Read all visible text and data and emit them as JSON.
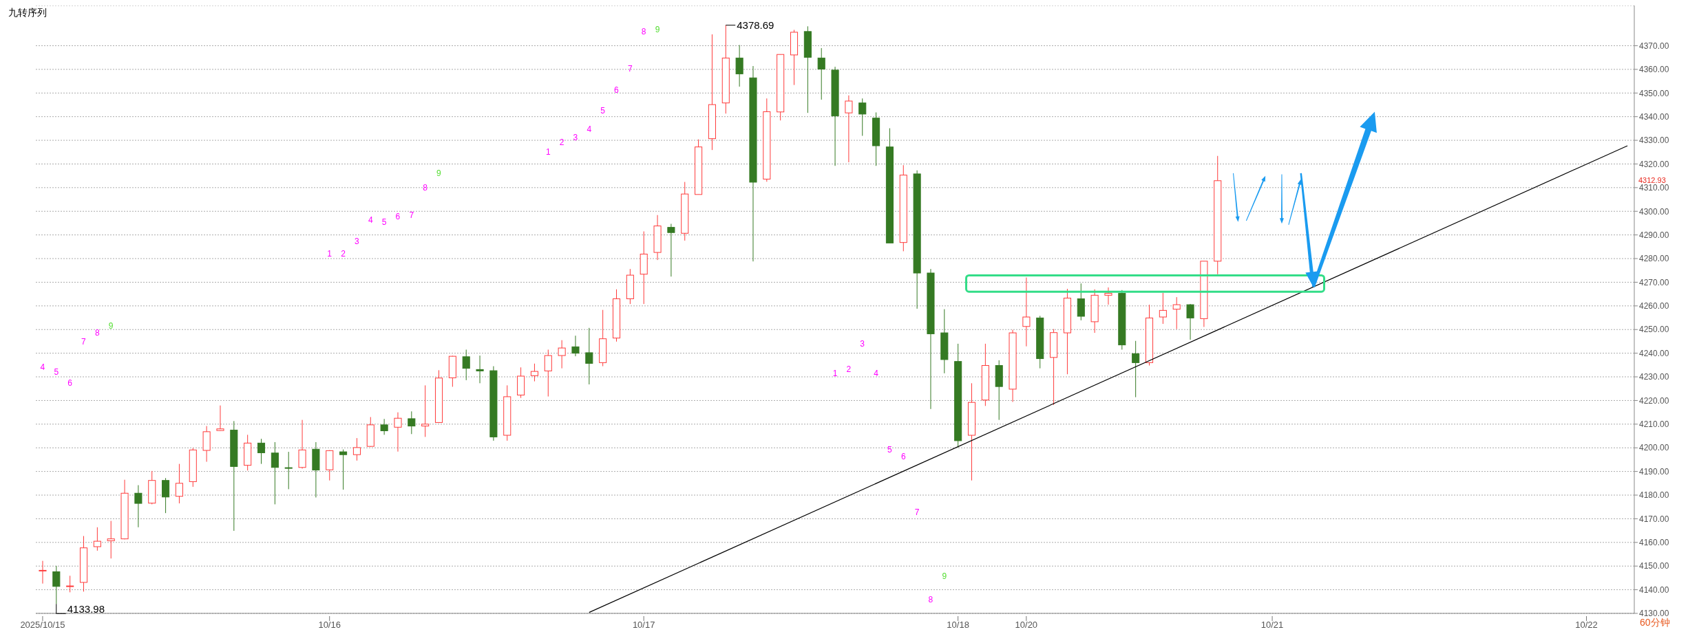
{
  "chart_data": {
    "type": "candlestick",
    "title": "九转序列",
    "categories": [
      "2025/10/15",
      null,
      null,
      null,
      null,
      null,
      null,
      null,
      null,
      null,
      null,
      null,
      null,
      null,
      null,
      null,
      null,
      null,
      null,
      null,
      null,
      "10/16",
      null,
      null,
      null,
      null,
      null,
      null,
      null,
      null,
      null,
      null,
      null,
      null,
      null,
      null,
      null,
      null,
      null,
      null,
      null,
      null,
      null,
      null,
      "10/17",
      null,
      null,
      null,
      null,
      null,
      null,
      null,
      null,
      null,
      null,
      null,
      null,
      null,
      null,
      null,
      null,
      null,
      null,
      null,
      null,
      null,
      null,
      "10/18",
      null,
      null,
      null,
      null,
      "10/20",
      null,
      null,
      null,
      null,
      null,
      null,
      null,
      null,
      null,
      null,
      null,
      null,
      null,
      null,
      null,
      null,
      null,
      "10/21",
      null,
      null,
      null,
      null,
      null,
      null,
      null,
      null,
      null,
      null,
      null,
      null,
      null,
      null,
      null,
      null,
      null,
      null,
      null,
      null,
      null,
      null,
      "10/22",
      null,
      null,
      null
    ],
    "ohlc": [
      [
        4148.0,
        4152.2,
        4142.6,
        4148.2
      ],
      [
        4147.6,
        4150.1,
        4133.98,
        4141.4
      ],
      [
        4141.4,
        4145.9,
        4138.9,
        4141.6
      ],
      [
        4143.1,
        4162.7,
        4139.2,
        4157.7
      ],
      [
        4158.2,
        4166.4,
        4156.5,
        4160.5
      ],
      [
        4160.7,
        4169.1,
        4153.2,
        4161.5
      ],
      [
        4161.5,
        4186.5,
        4161.3,
        4180.8
      ],
      [
        4180.8,
        4184.2,
        4166.4,
        4176.5
      ],
      [
        4176.6,
        4190.2,
        4176.1,
        4186.2
      ],
      [
        4186.2,
        4187.2,
        4172.4,
        4179.2
      ],
      [
        4179.5,
        4193.2,
        4176.5,
        4185.0
      ],
      [
        4185.7,
        4199.9,
        4183.5,
        4199.1
      ],
      [
        4198.9,
        4209.2,
        4194.1,
        4206.8
      ],
      [
        4207.3,
        4217.9,
        4207.2,
        4208.0
      ],
      [
        4207.5,
        4211.3,
        4164.9,
        4192.1
      ],
      [
        4192.6,
        4205.5,
        4190.4,
        4202.0
      ],
      [
        4202.0,
        4203.8,
        4193.2,
        4197.9
      ],
      [
        4197.8,
        4202.4,
        4176.1,
        4191.7
      ],
      [
        4191.6,
        4198.3,
        4182.5,
        4191.4
      ],
      [
        4191.7,
        4211.8,
        4191.2,
        4199.1
      ],
      [
        4199.4,
        4202.4,
        4179.0,
        4190.6
      ],
      [
        4190.7,
        4199.0,
        4186.2,
        4198.8
      ],
      [
        4198.3,
        4199.3,
        4182.3,
        4197.1
      ],
      [
        4197.1,
        4204.1,
        4194.6,
        4200.1
      ],
      [
        4200.6,
        4213.0,
        4200.4,
        4209.7
      ],
      [
        4209.7,
        4212.2,
        4205.5,
        4207.2
      ],
      [
        4208.7,
        4215.0,
        4198.4,
        4212.5
      ],
      [
        4212.3,
        4215.4,
        4205.8,
        4209.2
      ],
      [
        4209.2,
        4226.4,
        4204.6,
        4210.0
      ],
      [
        4210.7,
        4232.8,
        4210.5,
        4229.5
      ],
      [
        4229.6,
        4238.9,
        4225.8,
        4238.7
      ],
      [
        4238.5,
        4241.5,
        4228.6,
        4233.6
      ],
      [
        4233.1,
        4239.0,
        4227.3,
        4232.5
      ],
      [
        4232.6,
        4234.5,
        4203.0,
        4204.6
      ],
      [
        4205.3,
        4226.4,
        4203.0,
        4221.6
      ],
      [
        4222.3,
        4234.0,
        4221.1,
        4230.3
      ],
      [
        4230.5,
        4235.6,
        4228.1,
        4232.3
      ],
      [
        4232.5,
        4241.5,
        4221.7,
        4239.0
      ],
      [
        4239.0,
        4245.5,
        4233.6,
        4242.2
      ],
      [
        4242.7,
        4247.4,
        4238.7,
        4240.0
      ],
      [
        4240.2,
        4250.7,
        4226.8,
        4235.7
      ],
      [
        4236.0,
        4258.3,
        4234.5,
        4246.1
      ],
      [
        4246.4,
        4267.0,
        4244.9,
        4263.0
      ],
      [
        4263.0,
        4275.6,
        4260.8,
        4273.0
      ],
      [
        4273.4,
        4291.5,
        4260.8,
        4281.9
      ],
      [
        4282.6,
        4298.4,
        4279.4,
        4293.8
      ],
      [
        4293.2,
        4294.7,
        4272.4,
        4291.0
      ],
      [
        4290.7,
        4312.4,
        4287.6,
        4307.3
      ],
      [
        4307.1,
        4330.4,
        4307.1,
        4327.2
      ],
      [
        4330.7,
        4374.8,
        4325.9,
        4345.1
      ],
      [
        4345.8,
        4378.69,
        4341.3,
        4364.8
      ],
      [
        4364.8,
        4370.3,
        4352.7,
        4358.1
      ],
      [
        4356.4,
        4361.4,
        4278.8,
        4312.3
      ],
      [
        4313.6,
        4347.7,
        4312.5,
        4342.1
      ],
      [
        4342.0,
        4366.3,
        4338.4,
        4366.3
      ],
      [
        4366.1,
        4376.7,
        4353.4,
        4375.7
      ],
      [
        4376.0,
        4378.2,
        4341.6,
        4365.1
      ],
      [
        4364.8,
        4369.0,
        4347.2,
        4360.1
      ],
      [
        4359.7,
        4361.1,
        4319.2,
        4340.3
      ],
      [
        4341.6,
        4349.0,
        4320.7,
        4346.6
      ],
      [
        4345.8,
        4347.7,
        4331.9,
        4341.1
      ],
      [
        4339.4,
        4341.8,
        4319.2,
        4327.7
      ],
      [
        4327.2,
        4335.1,
        4286.6,
        4286.6
      ],
      [
        4286.8,
        4319.5,
        4283.1,
        4315.3
      ],
      [
        4315.8,
        4317.3,
        4258.8,
        4273.9
      ],
      [
        4273.9,
        4275.6,
        4216.4,
        4248.2
      ],
      [
        4248.6,
        4258.6,
        4231.5,
        4237.3
      ],
      [
        4236.5,
        4244.0,
        4200.1,
        4203.0
      ],
      [
        4205.3,
        4227.3,
        4186.2,
        4219.2
      ],
      [
        4220.2,
        4244.0,
        4217.7,
        4234.8
      ],
      [
        4234.8,
        4237.0,
        4211.8,
        4225.9
      ],
      [
        4224.8,
        4249.9,
        4219.4,
        4248.6
      ],
      [
        4251.3,
        4272.0,
        4242.9,
        4255.3
      ],
      [
        4254.9,
        4255.8,
        4233.6,
        4237.7
      ],
      [
        4238.2,
        4250.2,
        4218.1,
        4248.7
      ],
      [
        4248.6,
        4267.2,
        4231.1,
        4263.3
      ],
      [
        4263.0,
        4269.5,
        4253.9,
        4255.6
      ],
      [
        4253.3,
        4267.0,
        4248.6,
        4264.5
      ],
      [
        4264.5,
        4267.8,
        4260.5,
        4265.3
      ],
      [
        4265.3,
        4266.7,
        4241.5,
        4243.5
      ],
      [
        4239.8,
        4245.2,
        4221.4,
        4236.0
      ],
      [
        4236.0,
        4260.5,
        4234.8,
        4254.9
      ],
      [
        4255.3,
        4265.5,
        4252.4,
        4258.1
      ],
      [
        4258.6,
        4263.7,
        4250.2,
        4260.5
      ],
      [
        4260.5,
        4260.8,
        4245.7,
        4254.9
      ],
      [
        4254.6,
        4278.9,
        4251.1,
        4278.9
      ],
      [
        4278.9,
        4323.4,
        4273.4,
        4312.93
      ],
      null,
      null,
      null,
      null,
      null,
      null,
      null,
      null,
      null,
      null,
      null,
      null,
      null,
      null,
      null,
      null,
      null,
      null,
      null,
      null,
      null,
      null,
      null,
      null,
      null,
      null,
      null,
      null,
      null,
      null
    ],
    "colors": [
      "#ff3b3b",
      "#357a23",
      "#ff3b3b",
      "#ff3b3b",
      "#ff3b3b",
      "#ff3b3b",
      "#ff3b3b",
      "#357a23",
      "#ff3b3b",
      "#357a23",
      "#ff3b3b",
      "#ff3b3b",
      "#ff3b3b",
      "#ff3b3b",
      "#357a23",
      "#ff3b3b",
      "#357a23",
      "#357a23",
      "#357a23",
      "#ff3b3b",
      "#357a23",
      "#ff3b3b",
      "#357a23",
      "#ff3b3b",
      "#ff3b3b",
      "#357a23",
      "#ff3b3b",
      "#357a23",
      "#ff3b3b",
      "#ff3b3b",
      "#ff3b3b",
      "#357a23",
      "#357a23",
      "#357a23",
      "#ff3b3b",
      "#ff3b3b",
      "#ff3b3b",
      "#ff3b3b",
      "#ff3b3b",
      "#357a23",
      "#357a23",
      "#ff3b3b",
      "#ff3b3b",
      "#ff3b3b",
      "#ff3b3b",
      "#ff3b3b",
      "#357a23",
      "#ff3b3b",
      "#ff3b3b",
      "#ff3b3b",
      "#ff3b3b",
      "#357a23",
      "#357a23",
      "#ff3b3b",
      "#ff3b3b",
      "#ff3b3b",
      "#357a23",
      "#357a23",
      "#357a23",
      "#ff3b3b",
      "#357a23",
      "#357a23",
      "#357a23",
      "#ff3b3b",
      "#357a23",
      "#357a23",
      "#357a23",
      "#357a23",
      "#ff3b3b",
      "#ff3b3b",
      "#357a23",
      "#ff3b3b",
      "#ff3b3b",
      "#357a23",
      "#ff3b3b",
      "#ff3b3b",
      "#357a23",
      "#ff3b3b",
      "#ff3b3b",
      "#357a23",
      "#357a23",
      "#ff3b3b",
      "#ff3b3b",
      "#ff3b3b",
      "#357a23",
      "#ff3b3b",
      "#ff3b3b",
      null,
      null,
      null,
      null,
      null,
      null,
      null,
      null,
      null,
      null,
      null,
      null,
      null,
      null,
      null,
      null,
      null,
      null,
      null,
      null,
      null,
      null,
      null,
      null,
      null,
      null,
      null,
      null,
      null,
      null
    ],
    "ylim": [
      4130,
      4387
    ],
    "yticks": [
      {
        "value": 4130,
        "label": "4130.00"
      },
      {
        "value": 4140,
        "label": "4140.00"
      },
      {
        "value": 4150,
        "label": "4150.00"
      },
      {
        "value": 4160,
        "label": "4160.00"
      },
      {
        "value": 4170,
        "label": "4170.00"
      },
      {
        "value": 4180,
        "label": "4180.00"
      },
      {
        "value": 4190,
        "label": "4190.00"
      },
      {
        "value": 4200,
        "label": "4200.00"
      },
      {
        "value": 4210,
        "label": "4210.00"
      },
      {
        "value": 4220,
        "label": "4220.00"
      },
      {
        "value": 4230,
        "label": "4230.00"
      },
      {
        "value": 4240,
        "label": "4240.00"
      },
      {
        "value": 4250,
        "label": "4250.00"
      },
      {
        "value": 4260,
        "label": "4260.00"
      },
      {
        "value": 4270,
        "label": "4270.00"
      },
      {
        "value": 4280,
        "label": "4280.00"
      },
      {
        "value": 4290,
        "label": "4290.00"
      },
      {
        "value": 4300,
        "label": "4300.00"
      },
      {
        "value": 4310,
        "label": "4310.00"
      },
      {
        "value": 4320,
        "label": "4320.00"
      },
      {
        "value": 4330,
        "label": "4330.00"
      },
      {
        "value": 4340,
        "label": "4340.00"
      },
      {
        "value": 4350,
        "label": "4350.00"
      },
      {
        "value": 4360,
        "label": "4360.00"
      },
      {
        "value": 4370,
        "label": "4370.00"
      }
    ],
    "grid": "y",
    "annotations": [
      "4378.69",
      "4133.98",
      "4312.93",
      "60分钟",
      "4",
      "5",
      "6",
      "7",
      "8",
      "9",
      "1",
      "2",
      "3",
      "4",
      "5",
      "6",
      "7",
      "8",
      "9",
      "1",
      "2",
      "3",
      "4",
      "5",
      "6",
      "7",
      "8",
      "9",
      "1",
      "2",
      "3",
      "4",
      "5",
      "6",
      "7",
      "8",
      "9"
    ],
    "series": [
      {
        "type": "line",
        "color": "#000000",
        "values": [
          null,
          null,
          null,
          null,
          null,
          null,
          null,
          null,
          null,
          null,
          null,
          null,
          null,
          null,
          null,
          null,
          null,
          null,
          null,
          null,
          null,
          null,
          null,
          null,
          null,
          null,
          null,
          null,
          null,
          null,
          null,
          null,
          null,
          null,
          null,
          null,
          null,
          null,
          null,
          null,
          4130.4,
          null,
          null,
          null,
          null,
          null,
          null,
          null,
          null,
          null,
          null,
          null,
          null,
          null,
          null,
          null,
          null,
          null,
          null,
          null,
          null,
          null,
          null,
          null,
          null,
          null,
          null,
          null,
          null,
          null,
          null,
          null,
          null,
          null,
          null,
          null,
          null,
          null,
          null,
          null,
          null,
          null,
          null,
          null,
          null,
          null,
          null,
          null,
          null,
          null,
          null,
          null,
          null,
          null,
          null,
          null,
          null,
          null,
          null,
          null,
          null,
          null,
          null,
          null,
          null,
          null,
          null,
          null,
          null,
          null,
          null,
          null,
          null,
          null,
          null,
          null,
          4327.7
        ]
      }
    ]
  }
}
